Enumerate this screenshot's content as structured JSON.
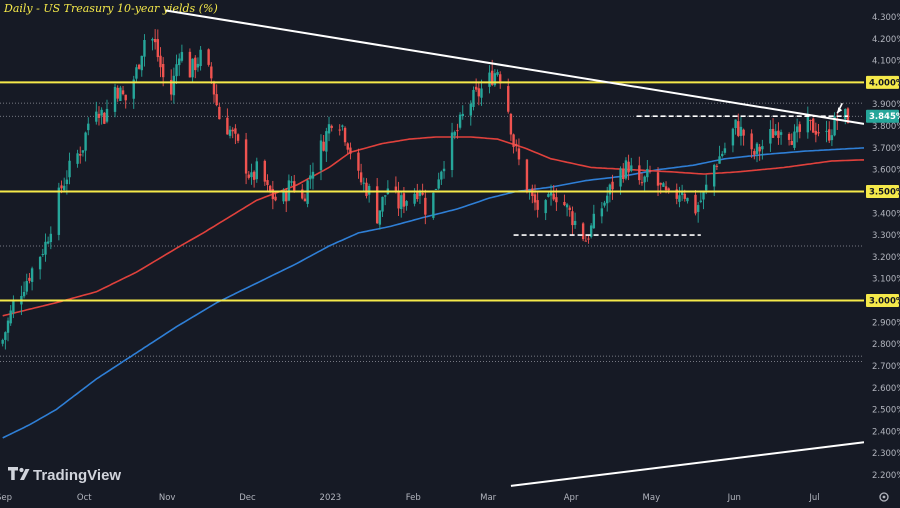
{
  "chart_data": {
    "type": "candlestick",
    "title": "Daily - US Treasury 10-year yields (%)",
    "xlabel": "",
    "ylabel": "",
    "ylim": [
      2.15,
      4.35
    ],
    "y_ticks": [
      "4.300%",
      "4.200%",
      "4.100%",
      "4.000%",
      "3.900%",
      "3.800%",
      "3.700%",
      "3.600%",
      "3.500%",
      "3.400%",
      "3.300%",
      "3.200%",
      "3.100%",
      "3.000%",
      "2.900%",
      "2.800%",
      "2.700%",
      "2.600%",
      "2.500%",
      "2.400%",
      "2.300%",
      "2.200%"
    ],
    "x_ticks": [
      {
        "label": "Sep",
        "x": 0.5
      },
      {
        "label": "Oct",
        "x": 30.5
      },
      {
        "label": "Nov",
        "x": 61.5
      },
      {
        "label": "Dec",
        "x": 91.5
      },
      {
        "label": "2023",
        "x": 122.5
      },
      {
        "label": "Feb",
        "x": 153.5
      },
      {
        "label": "Mar",
        "x": 181.5
      },
      {
        "label": "Apr",
        "x": 212.5
      },
      {
        "label": "May",
        "x": 242.5
      },
      {
        "label": "Jun",
        "x": 273.5
      },
      {
        "label": "Jul",
        "x": 303.5
      }
    ],
    "x_range": [
      -1,
      322
    ],
    "price_label": "3.845%",
    "horizontal_levels": [
      {
        "label": "4.000%",
        "value": 4.0
      },
      {
        "label": "3.500%",
        "value": 3.5
      },
      {
        "label": "3.000%",
        "value": 3.0
      }
    ],
    "dashed_lines": [
      {
        "value": 3.845,
        "x": [
          237,
          316
        ]
      },
      {
        "value": 3.3,
        "x": [
          191,
          261
        ]
      }
    ],
    "dotted_lines": [
      3.905,
      3.845,
      3.25,
      2.745,
      2.72
    ],
    "trendlines": [
      {
        "x": [
          61,
          322
        ],
        "y": [
          4.33,
          3.81
        ]
      },
      {
        "x": [
          190,
          322
        ],
        "y": [
          2.15,
          2.35
        ]
      }
    ],
    "ma_fast_anchor": [
      [
        0,
        2.93
      ],
      [
        20,
        2.99
      ],
      [
        35,
        3.04
      ],
      [
        50,
        3.13
      ],
      [
        65,
        3.24
      ],
      [
        75,
        3.31
      ],
      [
        95,
        3.46
      ],
      [
        110,
        3.53
      ],
      [
        122,
        3.61
      ],
      [
        130,
        3.68
      ],
      [
        142,
        3.72
      ],
      [
        152,
        3.74
      ],
      [
        162,
        3.75
      ],
      [
        175,
        3.75
      ],
      [
        185,
        3.74
      ],
      [
        195,
        3.7
      ],
      [
        205,
        3.65
      ],
      [
        220,
        3.61
      ],
      [
        235,
        3.6
      ],
      [
        250,
        3.59
      ],
      [
        262,
        3.58
      ],
      [
        275,
        3.59
      ],
      [
        292,
        3.61
      ],
      [
        310,
        3.64
      ],
      [
        322,
        3.645
      ]
    ],
    "ma_slow_anchor": [
      [
        0,
        2.37
      ],
      [
        10,
        2.43
      ],
      [
        20,
        2.5
      ],
      [
        35,
        2.64
      ],
      [
        50,
        2.76
      ],
      [
        65,
        2.88
      ],
      [
        80,
        2.99
      ],
      [
        95,
        3.08
      ],
      [
        110,
        3.17
      ],
      [
        122,
        3.25
      ],
      [
        133,
        3.31
      ],
      [
        145,
        3.34
      ],
      [
        157,
        3.38
      ],
      [
        170,
        3.42
      ],
      [
        182,
        3.47
      ],
      [
        192,
        3.5
      ],
      [
        205,
        3.52
      ],
      [
        218,
        3.55
      ],
      [
        232,
        3.57
      ],
      [
        245,
        3.6
      ],
      [
        258,
        3.62
      ],
      [
        270,
        3.65
      ],
      [
        285,
        3.67
      ],
      [
        300,
        3.685
      ],
      [
        322,
        3.7
      ]
    ],
    "close_anchor": [
      [
        0,
        2.82
      ],
      [
        4,
        2.98
      ],
      [
        10,
        3.12
      ],
      [
        16,
        3.26
      ],
      [
        22,
        3.52
      ],
      [
        26,
        3.63
      ],
      [
        30,
        3.71
      ],
      [
        34,
        3.92
      ],
      [
        38,
        3.84
      ],
      [
        42,
        3.98
      ],
      [
        46,
        3.92
      ],
      [
        50,
        4.05
      ],
      [
        54,
        4.25
      ],
      [
        57,
        4.17
      ],
      [
        60,
        4.02
      ],
      [
        63,
        3.95
      ],
      [
        66,
        4.15
      ],
      [
        70,
        4.05
      ],
      [
        74,
        4.12
      ],
      [
        78,
        4.02
      ],
      [
        81,
        3.84
      ],
      [
        85,
        3.78
      ],
      [
        89,
        3.68
      ],
      [
        93,
        3.55
      ],
      [
        96,
        3.62
      ],
      [
        99,
        3.5
      ],
      [
        104,
        3.44
      ],
      [
        108,
        3.55
      ],
      [
        112,
        3.46
      ],
      [
        116,
        3.62
      ],
      [
        120,
        3.73
      ],
      [
        124,
        3.87
      ],
      [
        127,
        3.8
      ],
      [
        130,
        3.69
      ],
      [
        133,
        3.56
      ],
      [
        137,
        3.5
      ],
      [
        140,
        3.39
      ],
      [
        144,
        3.52
      ],
      [
        148,
        3.44
      ],
      [
        152,
        3.48
      ],
      [
        156,
        3.52
      ],
      [
        159,
        3.38
      ],
      [
        163,
        3.58
      ],
      [
        166,
        3.68
      ],
      [
        170,
        3.78
      ],
      [
        174,
        3.9
      ],
      [
        178,
        3.95
      ],
      [
        181,
        4.0
      ],
      [
        185,
        4.06
      ],
      [
        188,
        3.96
      ],
      [
        191,
        3.72
      ],
      [
        195,
        3.55
      ],
      [
        198,
        3.46
      ],
      [
        202,
        3.39
      ],
      [
        206,
        3.5
      ],
      [
        210,
        3.44
      ],
      [
        214,
        3.36
      ],
      [
        218,
        3.28
      ],
      [
        222,
        3.38
      ],
      [
        226,
        3.48
      ],
      [
        230,
        3.58
      ],
      [
        234,
        3.62
      ],
      [
        238,
        3.52
      ],
      [
        242,
        3.58
      ],
      [
        246,
        3.51
      ],
      [
        250,
        3.45
      ],
      [
        254,
        3.52
      ],
      [
        258,
        3.4
      ],
      [
        262,
        3.48
      ],
      [
        266,
        3.62
      ],
      [
        270,
        3.7
      ],
      [
        274,
        3.8
      ],
      [
        278,
        3.75
      ],
      [
        280,
        3.66
      ],
      [
        284,
        3.71
      ],
      [
        288,
        3.77
      ],
      [
        292,
        3.81
      ],
      [
        296,
        3.74
      ],
      [
        300,
        3.8
      ],
      [
        304,
        3.79
      ],
      [
        308,
        3.75
      ],
      [
        312,
        3.83
      ],
      [
        316,
        3.845
      ]
    ]
  }
}
